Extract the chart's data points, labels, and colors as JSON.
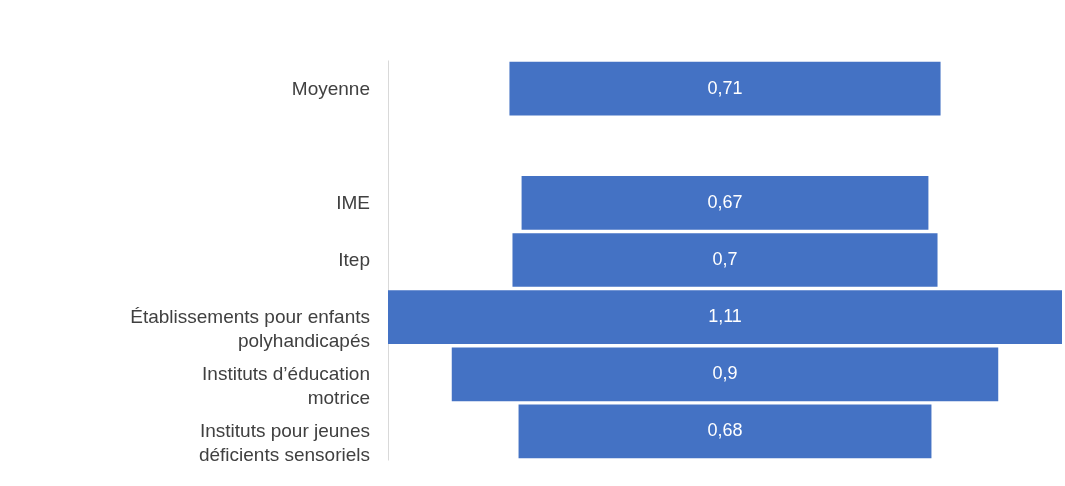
{
  "chart_data": {
    "type": "other",
    "categories": [
      "Moyenne",
      null,
      "IME",
      "Itep",
      "Établissements pour enfants polyhandicapés",
      "Instituts d’éducation motrice",
      "Instituts pour jeunes déficients sensoriels"
    ],
    "values": [
      0.71,
      null,
      0.67,
      0.7,
      1.11,
      0.9,
      0.68
    ],
    "value_labels": [
      "0,71",
      null,
      "0,67",
      "0,7",
      "1,11",
      "0,9",
      "0,68"
    ],
    "color": "#4472c4"
  }
}
